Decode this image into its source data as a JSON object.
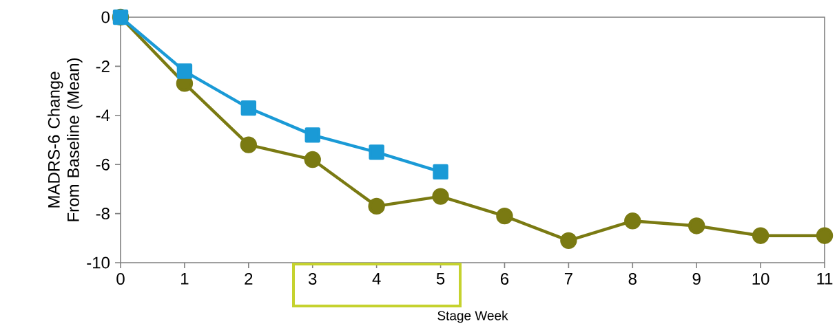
{
  "chart_data": {
    "type": "line",
    "xlabel": "Stage Week",
    "ylabel": "MADRS-6 Change From Baseline (Mean)",
    "x": [
      0,
      1,
      2,
      3,
      4,
      5,
      6,
      7,
      8,
      9,
      10,
      11
    ],
    "xlim": [
      0,
      11
    ],
    "xticks": [
      0,
      1,
      2,
      3,
      4,
      5,
      6,
      7,
      8,
      9,
      10,
      11
    ],
    "ylim": [
      -10,
      0
    ],
    "yticks": [
      -10,
      -8,
      -6,
      -4,
      -2,
      0
    ],
    "grid": false,
    "series": [
      {
        "color": "#7a7a12",
        "marker": "circle",
        "values": [
          0,
          -2.7,
          -5.2,
          -5.8,
          -7.7,
          -7.3,
          -8.1,
          -9.1,
          -8.3,
          -8.5,
          -8.9,
          -8.9
        ]
      },
      {
        "color": "#1a9ad6",
        "marker": "square",
        "values": [
          0,
          -2.2,
          -3.7,
          -4.8,
          -5.5,
          -6.3,
          null,
          null,
          null,
          null,
          null,
          null
        ]
      }
    ]
  }
}
